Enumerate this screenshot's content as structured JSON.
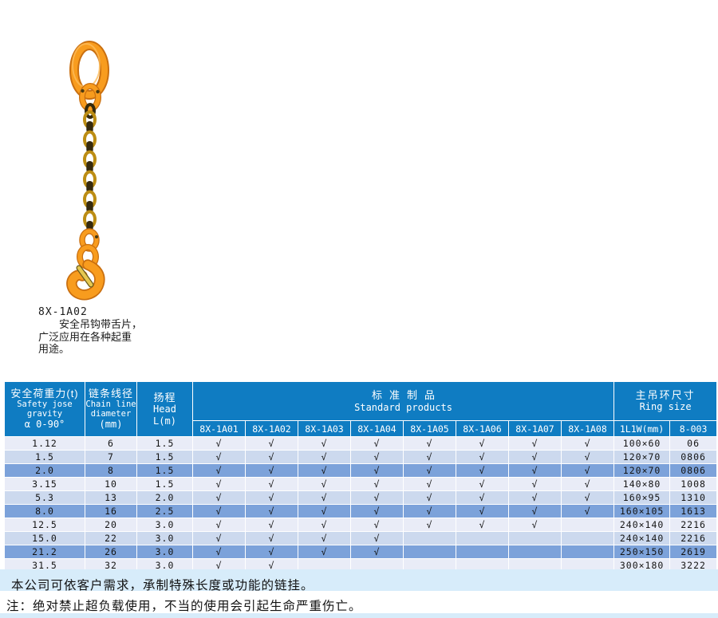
{
  "figure": {
    "model": "8X-1A02",
    "caption_lines": {
      "line1": "安全吊钩带舌片，",
      "line2": "广泛应用在各种起重",
      "line3": "用途。"
    }
  },
  "table": {
    "col_groups": {
      "load": {
        "zh": "安全荷重力(t)",
        "en": "Safety jose gravity",
        "sub": "α 0-90°"
      },
      "diameter": {
        "zh": "链条线径",
        "en1": "Chain line",
        "en2": "diameter",
        "sub": "(mm)"
      },
      "head": {
        "zh": "扬程",
        "en": "Head",
        "sub": "L(m)"
      },
      "standard": {
        "zh": "标准制品",
        "en": "Standard products"
      },
      "ring": {
        "zh": "主吊环尺寸",
        "en": "Ring size"
      }
    },
    "model_columns": [
      "8X-1A01",
      "8X-1A02",
      "8X-1A03",
      "8X-1A04",
      "8X-1A05",
      "8X-1A06",
      "8X-1A07",
      "8X-1A08"
    ],
    "ring_columns": [
      "1L1W(mm)",
      "8-003"
    ],
    "check_glyph": "√",
    "rows": [
      {
        "load": "1.12",
        "diameter": "6",
        "head": "1.5",
        "checks": [
          1,
          1,
          1,
          1,
          1,
          1,
          1,
          1
        ],
        "ring_size": "100×60",
        "ring_code": "06"
      },
      {
        "load": "1.5",
        "diameter": "7",
        "head": "1.5",
        "checks": [
          1,
          1,
          1,
          1,
          1,
          1,
          1,
          1
        ],
        "ring_size": "120×70",
        "ring_code": "0806"
      },
      {
        "load": "2.0",
        "diameter": "8",
        "head": "1.5",
        "checks": [
          1,
          1,
          1,
          1,
          1,
          1,
          1,
          1
        ],
        "ring_size": "120×70",
        "ring_code": "0806"
      },
      {
        "load": "3.15",
        "diameter": "10",
        "head": "1.5",
        "checks": [
          1,
          1,
          1,
          1,
          1,
          1,
          1,
          1
        ],
        "ring_size": "140×80",
        "ring_code": "1008"
      },
      {
        "load": "5.3",
        "diameter": "13",
        "head": "2.0",
        "checks": [
          1,
          1,
          1,
          1,
          1,
          1,
          1,
          1
        ],
        "ring_size": "160×95",
        "ring_code": "1310"
      },
      {
        "load": "8.0",
        "diameter": "16",
        "head": "2.5",
        "checks": [
          1,
          1,
          1,
          1,
          1,
          1,
          1,
          1
        ],
        "ring_size": "160×105",
        "ring_code": "1613"
      },
      {
        "load": "12.5",
        "diameter": "20",
        "head": "3.0",
        "checks": [
          1,
          1,
          1,
          1,
          1,
          1,
          1,
          0
        ],
        "ring_size": "240×140",
        "ring_code": "2216"
      },
      {
        "load": "15.0",
        "diameter": "22",
        "head": "3.0",
        "checks": [
          1,
          1,
          1,
          1,
          0,
          0,
          0,
          0
        ],
        "ring_size": "240×140",
        "ring_code": "2216"
      },
      {
        "load": "21.2",
        "diameter": "26",
        "head": "3.0",
        "checks": [
          1,
          1,
          1,
          1,
          0,
          0,
          0,
          0
        ],
        "ring_size": "250×150",
        "ring_code": "2619"
      },
      {
        "load": "31.5",
        "diameter": "32",
        "head": "3.0",
        "checks": [
          1,
          1,
          0,
          0,
          0,
          0,
          0,
          0
        ],
        "ring_size": "300×180",
        "ring_code": "3222"
      }
    ]
  },
  "notes": {
    "line1": "本公司可依客户需求，承制特殊长度或功能的链挂。",
    "line2": "注：绝对禁止超负载使用，不当的使用会引起生命严重伤亡。"
  },
  "colors": {
    "header_blue": "#0f7cc2",
    "row_light_a": "#e9ecf7",
    "row_light_b": "#ccd9ee",
    "row_dark": "#7ca2da",
    "band_blue": "#d7ecfa",
    "hook_orange": "#f89c1e",
    "hook_shadow": "#c96f10",
    "chain_gold": "#bc8d14",
    "chain_dark": "#352a0e",
    "latch_gold": "#e6c84f"
  }
}
